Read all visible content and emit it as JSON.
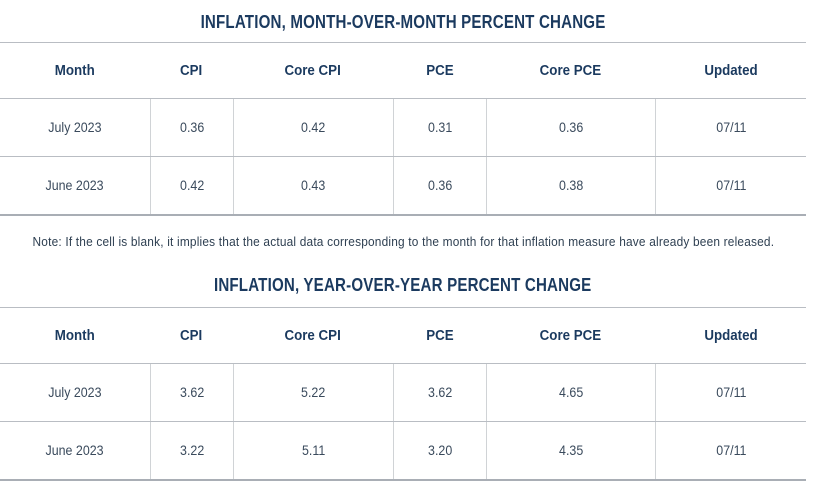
{
  "note": "Note: If the cell is blank, it implies that the actual data corresponding to the month for that inflation measure have already been released.",
  "colors": {
    "heading_navy": "#1b3a5f",
    "body_text": "#3a4a5c",
    "row_border": "#b9bdc3",
    "cell_border": "#d0d3d6",
    "table_end_border": "#a9aeb5"
  },
  "chart_data": [
    {
      "type": "table",
      "title": "INFLATION, MONTH-OVER-MONTH PERCENT CHANGE",
      "columns": [
        "Month",
        "CPI",
        "Core CPI",
        "PCE",
        "Core PCE",
        "Updated"
      ],
      "rows": [
        [
          "July 2023",
          "0.36",
          "0.42",
          "0.31",
          "0.36",
          "07/11"
        ],
        [
          "June 2023",
          "0.42",
          "0.43",
          "0.36",
          "0.38",
          "07/11"
        ]
      ]
    },
    {
      "type": "table",
      "title": "INFLATION, YEAR-OVER-YEAR PERCENT CHANGE",
      "columns": [
        "Month",
        "CPI",
        "Core CPI",
        "PCE",
        "Core PCE",
        "Updated"
      ],
      "rows": [
        [
          "July 2023",
          "3.62",
          "5.22",
          "3.62",
          "4.65",
          "07/11"
        ],
        [
          "June 2023",
          "3.22",
          "5.11",
          "3.20",
          "4.35",
          "07/11"
        ]
      ]
    }
  ]
}
